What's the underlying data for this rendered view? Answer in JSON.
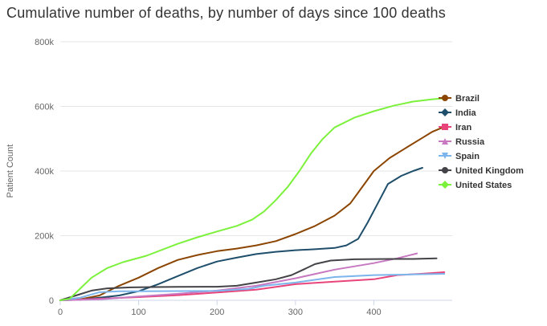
{
  "chart_data": {
    "type": "line",
    "title": "Cumulative number of deaths, by number of days since 100 deaths",
    "xlabel": "",
    "ylabel": "Patient Count",
    "xlim": [
      0,
      500
    ],
    "ylim": [
      0,
      800000
    ],
    "x_ticks": [
      0,
      100,
      200,
      300,
      400
    ],
    "y_ticks": [
      0,
      200000,
      400000,
      600000,
      800000
    ],
    "x_tick_labels": [
      "0",
      "100",
      "200",
      "300",
      "400"
    ],
    "y_tick_labels": [
      "0",
      "200k",
      "400k",
      "600k",
      "800k"
    ],
    "grid": "horizontal",
    "legend_position": "right",
    "series": [
      {
        "name": "Brazil",
        "color": "#8B4500",
        "marker": "circle",
        "points": [
          [
            0,
            0
          ],
          [
            25,
            3000
          ],
          [
            50,
            15000
          ],
          [
            75,
            45000
          ],
          [
            100,
            70000
          ],
          [
            125,
            100000
          ],
          [
            150,
            125000
          ],
          [
            175,
            140000
          ],
          [
            200,
            152000
          ],
          [
            225,
            160000
          ],
          [
            250,
            170000
          ],
          [
            275,
            183000
          ],
          [
            300,
            205000
          ],
          [
            325,
            230000
          ],
          [
            350,
            262000
          ],
          [
            370,
            300000
          ],
          [
            385,
            350000
          ],
          [
            400,
            400000
          ],
          [
            420,
            440000
          ],
          [
            440,
            470000
          ],
          [
            460,
            500000
          ],
          [
            475,
            522000
          ],
          [
            488,
            535000
          ]
        ]
      },
      {
        "name": "India",
        "color": "#1F4E6B",
        "marker": "diamond",
        "points": [
          [
            0,
            0
          ],
          [
            25,
            2000
          ],
          [
            50,
            8000
          ],
          [
            75,
            15000
          ],
          [
            100,
            28000
          ],
          [
            125,
            50000
          ],
          [
            150,
            75000
          ],
          [
            175,
            100000
          ],
          [
            200,
            120000
          ],
          [
            225,
            132000
          ],
          [
            250,
            143000
          ],
          [
            275,
            150000
          ],
          [
            300,
            155000
          ],
          [
            325,
            158000
          ],
          [
            350,
            162000
          ],
          [
            365,
            170000
          ],
          [
            380,
            190000
          ],
          [
            392,
            240000
          ],
          [
            405,
            300000
          ],
          [
            418,
            360000
          ],
          [
            435,
            385000
          ],
          [
            450,
            400000
          ],
          [
            462,
            410000
          ]
        ]
      },
      {
        "name": "Iran",
        "color": "#E8447A",
        "marker": "square",
        "points": [
          [
            0,
            0
          ],
          [
            50,
            5000
          ],
          [
            100,
            10000
          ],
          [
            150,
            16000
          ],
          [
            200,
            24000
          ],
          [
            250,
            33000
          ],
          [
            300,
            50000
          ],
          [
            350,
            58000
          ],
          [
            400,
            65000
          ],
          [
            430,
            78000
          ],
          [
            460,
            82000
          ],
          [
            490,
            87000
          ]
        ]
      },
      {
        "name": "Russia",
        "color": "#C778C0",
        "marker": "triangle",
        "points": [
          [
            0,
            0
          ],
          [
            50,
            3000
          ],
          [
            100,
            12000
          ],
          [
            150,
            20000
          ],
          [
            200,
            30000
          ],
          [
            250,
            45000
          ],
          [
            300,
            68000
          ],
          [
            350,
            95000
          ],
          [
            400,
            115000
          ],
          [
            430,
            130000
          ],
          [
            455,
            145000
          ]
        ]
      },
      {
        "name": "Spain",
        "color": "#7CB5EC",
        "marker": "triangle-down",
        "points": [
          [
            0,
            0
          ],
          [
            25,
            8000
          ],
          [
            50,
            25000
          ],
          [
            75,
            28000
          ],
          [
            100,
            28000
          ],
          [
            150,
            28500
          ],
          [
            200,
            29000
          ],
          [
            240,
            35000
          ],
          [
            260,
            45000
          ],
          [
            300,
            55000
          ],
          [
            350,
            72000
          ],
          [
            400,
            78000
          ],
          [
            450,
            80000
          ],
          [
            490,
            82000
          ]
        ]
      },
      {
        "name": "United Kingdom",
        "color": "#434348",
        "marker": "circle",
        "points": [
          [
            0,
            0
          ],
          [
            20,
            15000
          ],
          [
            40,
            30000
          ],
          [
            60,
            37000
          ],
          [
            90,
            40000
          ],
          [
            120,
            41000
          ],
          [
            150,
            41500
          ],
          [
            200,
            42000
          ],
          [
            225,
            45000
          ],
          [
            250,
            55000
          ],
          [
            275,
            65000
          ],
          [
            295,
            78000
          ],
          [
            310,
            95000
          ],
          [
            325,
            112000
          ],
          [
            345,
            123000
          ],
          [
            375,
            127000
          ],
          [
            420,
            128000
          ],
          [
            450,
            128000
          ],
          [
            480,
            130000
          ]
        ]
      },
      {
        "name": "United States",
        "color": "#7CF13C",
        "marker": "diamond",
        "points": [
          [
            0,
            0
          ],
          [
            12,
            5000
          ],
          [
            25,
            35000
          ],
          [
            40,
            70000
          ],
          [
            60,
            100000
          ],
          [
            80,
            118000
          ],
          [
            110,
            138000
          ],
          [
            150,
            175000
          ],
          [
            175,
            195000
          ],
          [
            200,
            213000
          ],
          [
            225,
            230000
          ],
          [
            245,
            250000
          ],
          [
            260,
            275000
          ],
          [
            275,
            310000
          ],
          [
            290,
            350000
          ],
          [
            305,
            400000
          ],
          [
            320,
            455000
          ],
          [
            335,
            500000
          ],
          [
            350,
            535000
          ],
          [
            375,
            565000
          ],
          [
            400,
            585000
          ],
          [
            425,
            602000
          ],
          [
            450,
            615000
          ],
          [
            475,
            622000
          ],
          [
            490,
            625000
          ]
        ]
      }
    ]
  }
}
